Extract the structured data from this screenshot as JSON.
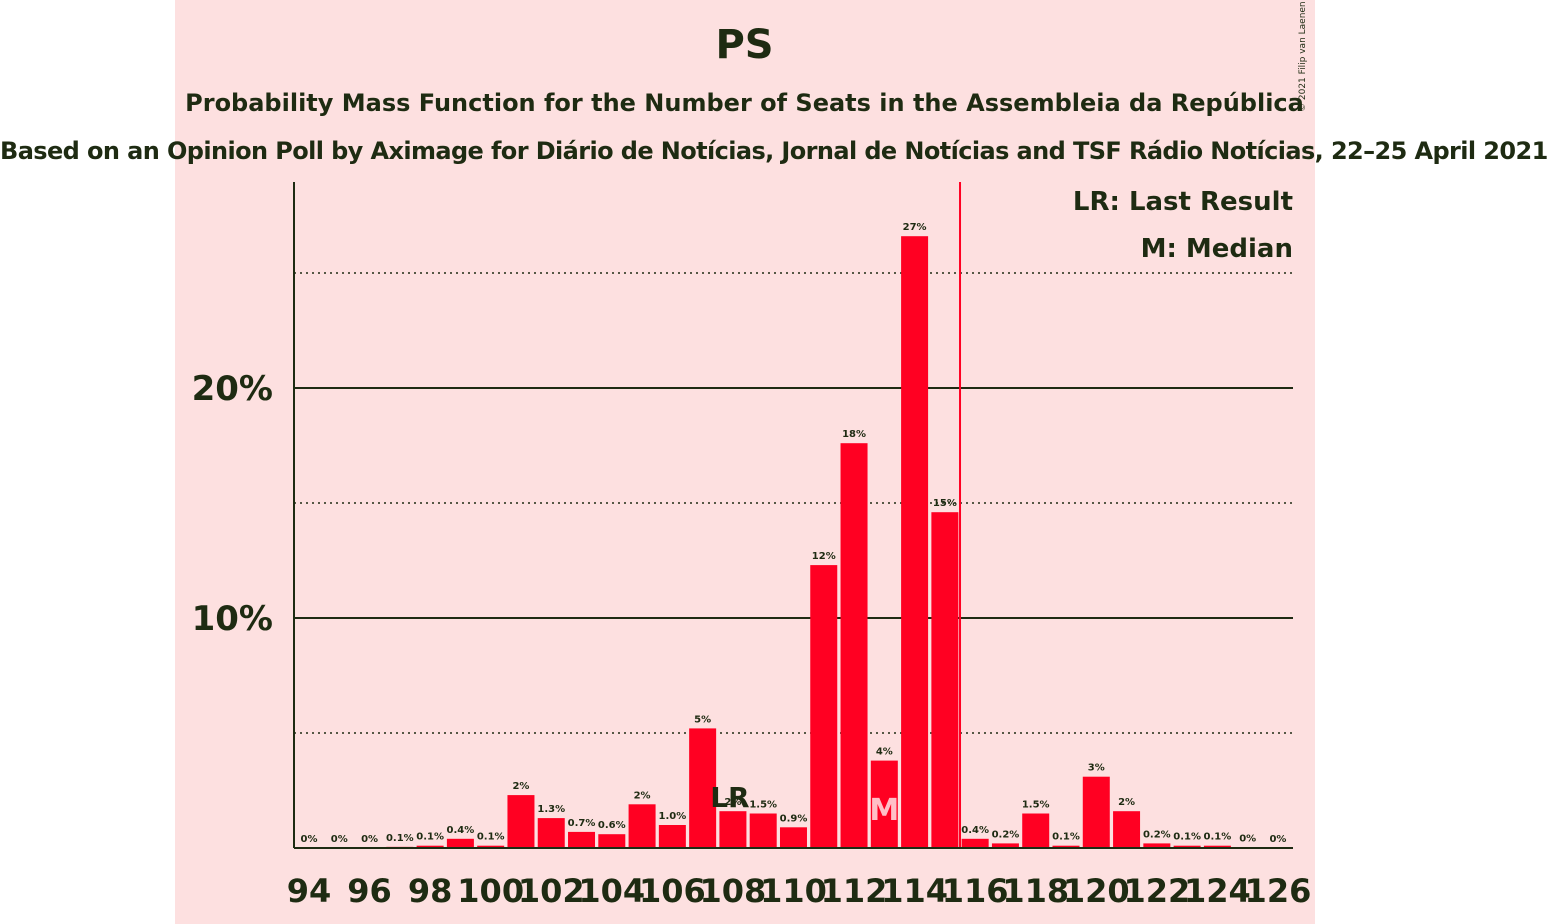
{
  "title": "PS",
  "subtitle": "Probability Mass Function for the Number of Seats in the Assembleia da República",
  "subtitle2": "Based on an Opinion Poll by Aximage for Diário de Notícias, Jornal de Notícias and TSF Rádio Notícias, 22–25 April 2021",
  "copyright": "© 2021 Filip van Laenen",
  "legend": {
    "lr": "LR: Last Result",
    "median": "M: Median"
  },
  "colors": {
    "bar": "#ff0022",
    "background_band": "#fde0e0",
    "text": "#1e2b12",
    "last_result_line": "#ff0022"
  },
  "chart_data": {
    "type": "bar",
    "title": "PS",
    "x": [
      94,
      95,
      96,
      97,
      98,
      99,
      100,
      101,
      102,
      103,
      104,
      105,
      106,
      107,
      108,
      109,
      110,
      111,
      112,
      113,
      114,
      115,
      116,
      117,
      118,
      119,
      120,
      121,
      122,
      123,
      124,
      125,
      126
    ],
    "values": [
      0,
      0,
      0,
      0.05,
      0.1,
      0.4,
      0.1,
      2.3,
      1.3,
      0.7,
      0.6,
      1.9,
      1.0,
      5.2,
      1.6,
      1.5,
      0.9,
      12.3,
      17.6,
      3.8,
      26.6,
      14.6,
      0.4,
      0.2,
      1.5,
      0.1,
      3.1,
      1.6,
      0.2,
      0.1,
      0.1,
      0.03,
      0.01
    ],
    "value_labels": [
      "0%",
      "0%",
      "0%",
      "0.1%",
      "0.1%",
      "0.4%",
      "0.1%",
      "2%",
      "1.3%",
      "0.7%",
      "0.6%",
      "2%",
      "1.0%",
      "5%",
      "2%",
      "1.5%",
      "0.9%",
      "12%",
      "18%",
      "4%",
      "27%",
      "15%",
      "0.4%",
      "0.2%",
      "1.5%",
      "0.1%",
      "3%",
      "2%",
      "0.2%",
      "0.1%",
      "0.1%",
      "0%",
      "0%"
    ],
    "x_tick_labels": [
      "94",
      "96",
      "98",
      "100",
      "102",
      "104",
      "106",
      "108",
      "110",
      "112",
      "114",
      "116",
      "118",
      "120",
      "122",
      "124",
      "126"
    ],
    "y_tick_labels": [
      "10%",
      "20%"
    ],
    "ylim": [
      0,
      28.9
    ],
    "major_gridlines": [
      10,
      20
    ],
    "minor_gridlines": [
      5,
      15,
      25
    ],
    "last_result_seat": 108,
    "median_seat": 113,
    "last_result_line_after_seat": 115,
    "lr_marker": "LR",
    "median_marker": "M",
    "legend_placement": "top-right"
  }
}
